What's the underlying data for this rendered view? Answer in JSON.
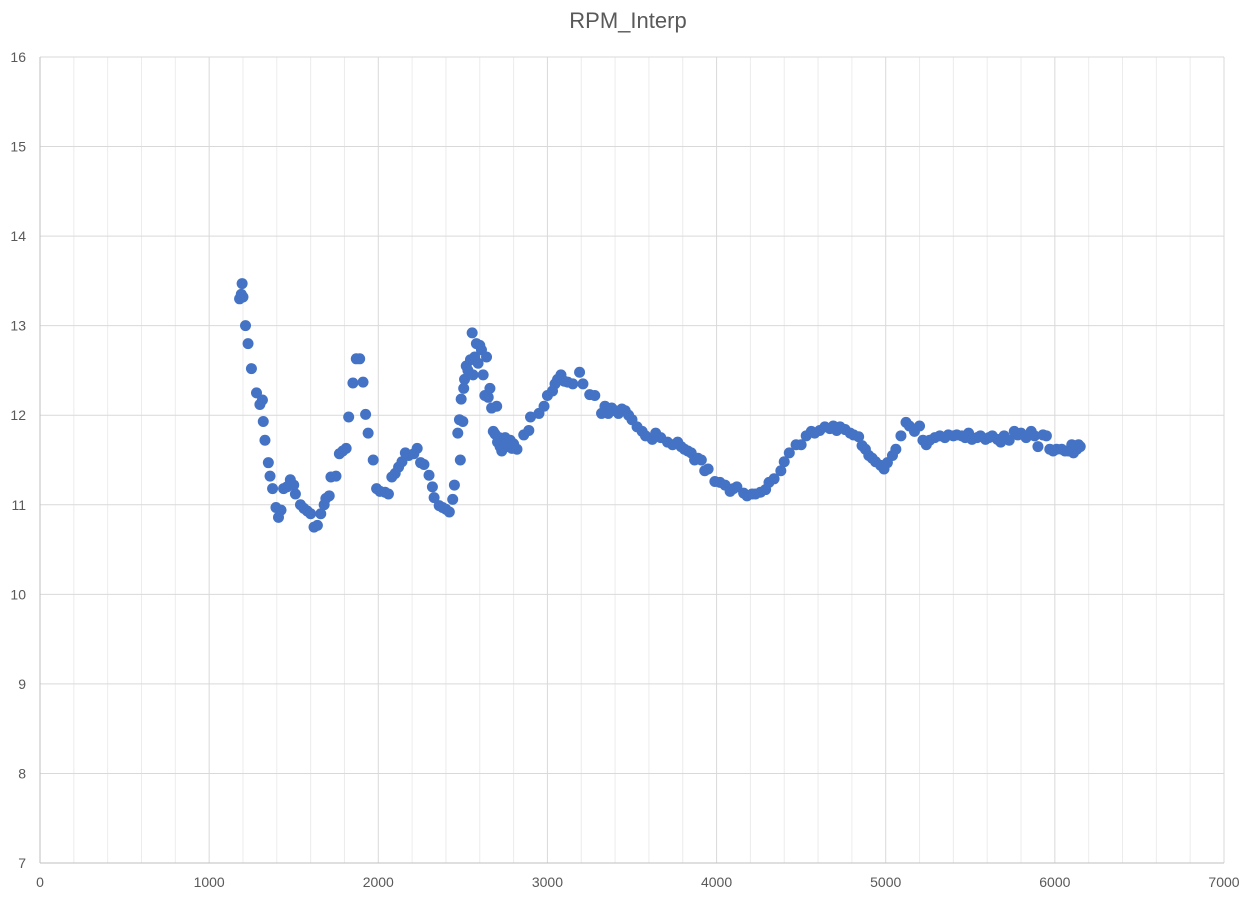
{
  "chart_data": {
    "type": "scatter",
    "title": "RPM_Interp",
    "xlabel": "",
    "ylabel": "",
    "xlim": [
      0,
      7000
    ],
    "ylim": [
      7,
      16
    ],
    "x_major_step": 1000,
    "x_minor_step": 200,
    "y_major_step": 1,
    "y_minor_count": 0,
    "x_ticks": [
      "0",
      "1000",
      "2000",
      "3000",
      "4000",
      "5000",
      "6000",
      "7000"
    ],
    "y_ticks": [
      "7",
      "8",
      "9",
      "10",
      "11",
      "12",
      "13",
      "14",
      "15",
      "16"
    ],
    "grid": true,
    "legend": "none",
    "marker_color": "#4472c4",
    "series": [
      {
        "points": [
          [
            1180,
            13.3
          ],
          [
            1190,
            13.35
          ],
          [
            1195,
            13.47
          ],
          [
            1200,
            13.32
          ],
          [
            1215,
            13.0
          ],
          [
            1230,
            12.8
          ],
          [
            1250,
            12.52
          ],
          [
            1280,
            12.25
          ],
          [
            1300,
            12.12
          ],
          [
            1315,
            12.17
          ],
          [
            1320,
            11.93
          ],
          [
            1330,
            11.72
          ],
          [
            1350,
            11.47
          ],
          [
            1360,
            11.32
          ],
          [
            1375,
            11.18
          ],
          [
            1395,
            10.97
          ],
          [
            1410,
            10.86
          ],
          [
            1425,
            10.94
          ],
          [
            1440,
            11.18
          ],
          [
            1460,
            11.2
          ],
          [
            1480,
            11.28
          ],
          [
            1500,
            11.22
          ],
          [
            1510,
            11.12
          ],
          [
            1540,
            11.0
          ],
          [
            1560,
            10.96
          ],
          [
            1580,
            10.93
          ],
          [
            1600,
            10.9
          ],
          [
            1620,
            10.75
          ],
          [
            1640,
            10.77
          ],
          [
            1660,
            10.9
          ],
          [
            1680,
            11.0
          ],
          [
            1690,
            11.07
          ],
          [
            1710,
            11.1
          ],
          [
            1720,
            11.31
          ],
          [
            1750,
            11.32
          ],
          [
            1770,
            11.57
          ],
          [
            1790,
            11.6
          ],
          [
            1810,
            11.63
          ],
          [
            1825,
            11.98
          ],
          [
            1850,
            12.36
          ],
          [
            1870,
            12.63
          ],
          [
            1890,
            12.63
          ],
          [
            1910,
            12.37
          ],
          [
            1925,
            12.01
          ],
          [
            1940,
            11.8
          ],
          [
            1970,
            11.5
          ],
          [
            1990,
            11.18
          ],
          [
            2010,
            11.15
          ],
          [
            2040,
            11.14
          ],
          [
            2060,
            11.12
          ],
          [
            2080,
            11.31
          ],
          [
            2100,
            11.35
          ],
          [
            2120,
            11.42
          ],
          [
            2140,
            11.48
          ],
          [
            2160,
            11.58
          ],
          [
            2180,
            11.55
          ],
          [
            2210,
            11.57
          ],
          [
            2230,
            11.63
          ],
          [
            2250,
            11.47
          ],
          [
            2270,
            11.45
          ],
          [
            2300,
            11.33
          ],
          [
            2320,
            11.2
          ],
          [
            2330,
            11.08
          ],
          [
            2360,
            10.99
          ],
          [
            2380,
            10.97
          ],
          [
            2400,
            10.95
          ],
          [
            2420,
            10.92
          ],
          [
            2440,
            11.06
          ],
          [
            2450,
            11.22
          ],
          [
            2470,
            11.8
          ],
          [
            2480,
            11.95
          ],
          [
            2485,
            11.5
          ],
          [
            2490,
            12.18
          ],
          [
            2500,
            11.93
          ],
          [
            2505,
            12.3
          ],
          [
            2510,
            12.4
          ],
          [
            2520,
            12.55
          ],
          [
            2530,
            12.5
          ],
          [
            2545,
            12.62
          ],
          [
            2555,
            12.92
          ],
          [
            2560,
            12.45
          ],
          [
            2570,
            12.65
          ],
          [
            2580,
            12.8
          ],
          [
            2590,
            12.58
          ],
          [
            2600,
            12.78
          ],
          [
            2610,
            12.73
          ],
          [
            2620,
            12.45
          ],
          [
            2630,
            12.22
          ],
          [
            2640,
            12.65
          ],
          [
            2650,
            12.2
          ],
          [
            2660,
            12.3
          ],
          [
            2670,
            12.08
          ],
          [
            2680,
            11.82
          ],
          [
            2690,
            11.79
          ],
          [
            2700,
            12.1
          ],
          [
            2705,
            11.7
          ],
          [
            2715,
            11.75
          ],
          [
            2720,
            11.65
          ],
          [
            2730,
            11.6
          ],
          [
            2740,
            11.7
          ],
          [
            2750,
            11.75
          ],
          [
            2760,
            11.68
          ],
          [
            2770,
            11.65
          ],
          [
            2780,
            11.72
          ],
          [
            2790,
            11.63
          ],
          [
            2800,
            11.68
          ],
          [
            2820,
            11.62
          ],
          [
            2860,
            11.78
          ],
          [
            2890,
            11.83
          ],
          [
            2900,
            11.98
          ],
          [
            2950,
            12.02
          ],
          [
            2980,
            12.1
          ],
          [
            3000,
            12.22
          ],
          [
            3030,
            12.27
          ],
          [
            3045,
            12.35
          ],
          [
            3060,
            12.4
          ],
          [
            3080,
            12.45
          ],
          [
            3100,
            12.38
          ],
          [
            3120,
            12.37
          ],
          [
            3150,
            12.35
          ],
          [
            3190,
            12.48
          ],
          [
            3210,
            12.35
          ],
          [
            3250,
            12.23
          ],
          [
            3280,
            12.22
          ],
          [
            3320,
            12.02
          ],
          [
            3340,
            12.1
          ],
          [
            3350,
            12.05
          ],
          [
            3360,
            12.02
          ],
          [
            3380,
            12.08
          ],
          [
            3400,
            12.05
          ],
          [
            3420,
            12.02
          ],
          [
            3440,
            12.07
          ],
          [
            3460,
            12.05
          ],
          [
            3480,
            12.0
          ],
          [
            3500,
            11.95
          ],
          [
            3530,
            11.87
          ],
          [
            3560,
            11.82
          ],
          [
            3580,
            11.77
          ],
          [
            3620,
            11.73
          ],
          [
            3640,
            11.8
          ],
          [
            3670,
            11.75
          ],
          [
            3710,
            11.7
          ],
          [
            3740,
            11.67
          ],
          [
            3770,
            11.7
          ],
          [
            3790,
            11.65
          ],
          [
            3810,
            11.62
          ],
          [
            3830,
            11.6
          ],
          [
            3850,
            11.58
          ],
          [
            3870,
            11.5
          ],
          [
            3890,
            11.52
          ],
          [
            3910,
            11.5
          ],
          [
            3930,
            11.38
          ],
          [
            3950,
            11.4
          ],
          [
            3990,
            11.26
          ],
          [
            4020,
            11.25
          ],
          [
            4050,
            11.22
          ],
          [
            4080,
            11.15
          ],
          [
            4100,
            11.18
          ],
          [
            4120,
            11.2
          ],
          [
            4160,
            11.13
          ],
          [
            4180,
            11.1
          ],
          [
            4210,
            11.12
          ],
          [
            4230,
            11.12
          ],
          [
            4260,
            11.14
          ],
          [
            4290,
            11.17
          ],
          [
            4310,
            11.25
          ],
          [
            4340,
            11.29
          ],
          [
            4380,
            11.38
          ],
          [
            4400,
            11.48
          ],
          [
            4430,
            11.58
          ],
          [
            4470,
            11.67
          ],
          [
            4500,
            11.67
          ],
          [
            4530,
            11.77
          ],
          [
            4560,
            11.82
          ],
          [
            4580,
            11.8
          ],
          [
            4610,
            11.83
          ],
          [
            4640,
            11.87
          ],
          [
            4670,
            11.85
          ],
          [
            4690,
            11.88
          ],
          [
            4710,
            11.83
          ],
          [
            4730,
            11.87
          ],
          [
            4760,
            11.84
          ],
          [
            4790,
            11.8
          ],
          [
            4810,
            11.78
          ],
          [
            4840,
            11.76
          ],
          [
            4860,
            11.66
          ],
          [
            4880,
            11.62
          ],
          [
            4900,
            11.55
          ],
          [
            4920,
            11.52
          ],
          [
            4940,
            11.48
          ],
          [
            4970,
            11.44
          ],
          [
            4990,
            11.4
          ],
          [
            5010,
            11.47
          ],
          [
            5040,
            11.55
          ],
          [
            5060,
            11.62
          ],
          [
            5090,
            11.77
          ],
          [
            5120,
            11.92
          ],
          [
            5140,
            11.88
          ],
          [
            5170,
            11.82
          ],
          [
            5200,
            11.88
          ],
          [
            5220,
            11.72
          ],
          [
            5240,
            11.67
          ],
          [
            5260,
            11.72
          ],
          [
            5290,
            11.75
          ],
          [
            5320,
            11.77
          ],
          [
            5350,
            11.75
          ],
          [
            5370,
            11.78
          ],
          [
            5400,
            11.77
          ],
          [
            5420,
            11.78
          ],
          [
            5450,
            11.77
          ],
          [
            5470,
            11.75
          ],
          [
            5490,
            11.8
          ],
          [
            5510,
            11.73
          ],
          [
            5540,
            11.75
          ],
          [
            5560,
            11.77
          ],
          [
            5590,
            11.73
          ],
          [
            5610,
            11.75
          ],
          [
            5630,
            11.77
          ],
          [
            5660,
            11.73
          ],
          [
            5680,
            11.7
          ],
          [
            5700,
            11.77
          ],
          [
            5730,
            11.72
          ],
          [
            5760,
            11.82
          ],
          [
            5780,
            11.78
          ],
          [
            5800,
            11.8
          ],
          [
            5830,
            11.75
          ],
          [
            5860,
            11.82
          ],
          [
            5880,
            11.77
          ],
          [
            5900,
            11.65
          ],
          [
            5930,
            11.78
          ],
          [
            5950,
            11.77
          ],
          [
            5970,
            11.62
          ],
          [
            5990,
            11.6
          ],
          [
            6010,
            11.62
          ],
          [
            6040,
            11.62
          ],
          [
            6060,
            11.6
          ],
          [
            6080,
            11.6
          ],
          [
            6100,
            11.67
          ],
          [
            6110,
            11.58
          ],
          [
            6120,
            11.65
          ],
          [
            6130,
            11.62
          ],
          [
            6140,
            11.67
          ],
          [
            6150,
            11.65
          ]
        ]
      }
    ]
  }
}
